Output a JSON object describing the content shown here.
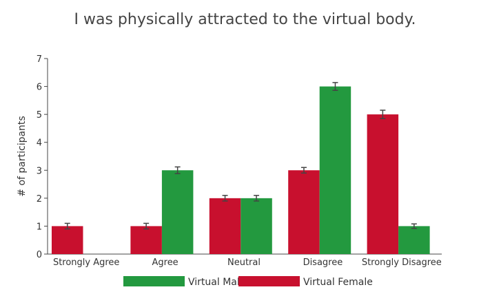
{
  "chart_data": {
    "type": "bar",
    "title": "I was physically attracted to the virtual body.",
    "xlabel": "",
    "ylabel": "# of participants",
    "categories": [
      "Strongly Agree",
      "Agree",
      "Neutral",
      "Disagree",
      "Strongly Disagree"
    ],
    "series": [
      {
        "name": "Virtual Female",
        "color": "#c8102e",
        "values": [
          1,
          1,
          2,
          3,
          5
        ],
        "error": [
          0.1,
          0.1,
          0.1,
          0.1,
          0.15
        ]
      },
      {
        "name": "Virtual Male",
        "color": "#23993f",
        "values": [
          0,
          3,
          2,
          6,
          1
        ],
        "error": [
          0,
          0.12,
          0.1,
          0.14,
          0.08
        ]
      }
    ],
    "ylim": [
      0,
      7
    ],
    "yticks": [
      "0",
      "1",
      "2",
      "3",
      "4",
      "5",
      "6",
      "7"
    ],
    "legend": {
      "placement": "bottom",
      "order": [
        "Virtual Male",
        "Virtual Female"
      ]
    },
    "grid": false
  }
}
